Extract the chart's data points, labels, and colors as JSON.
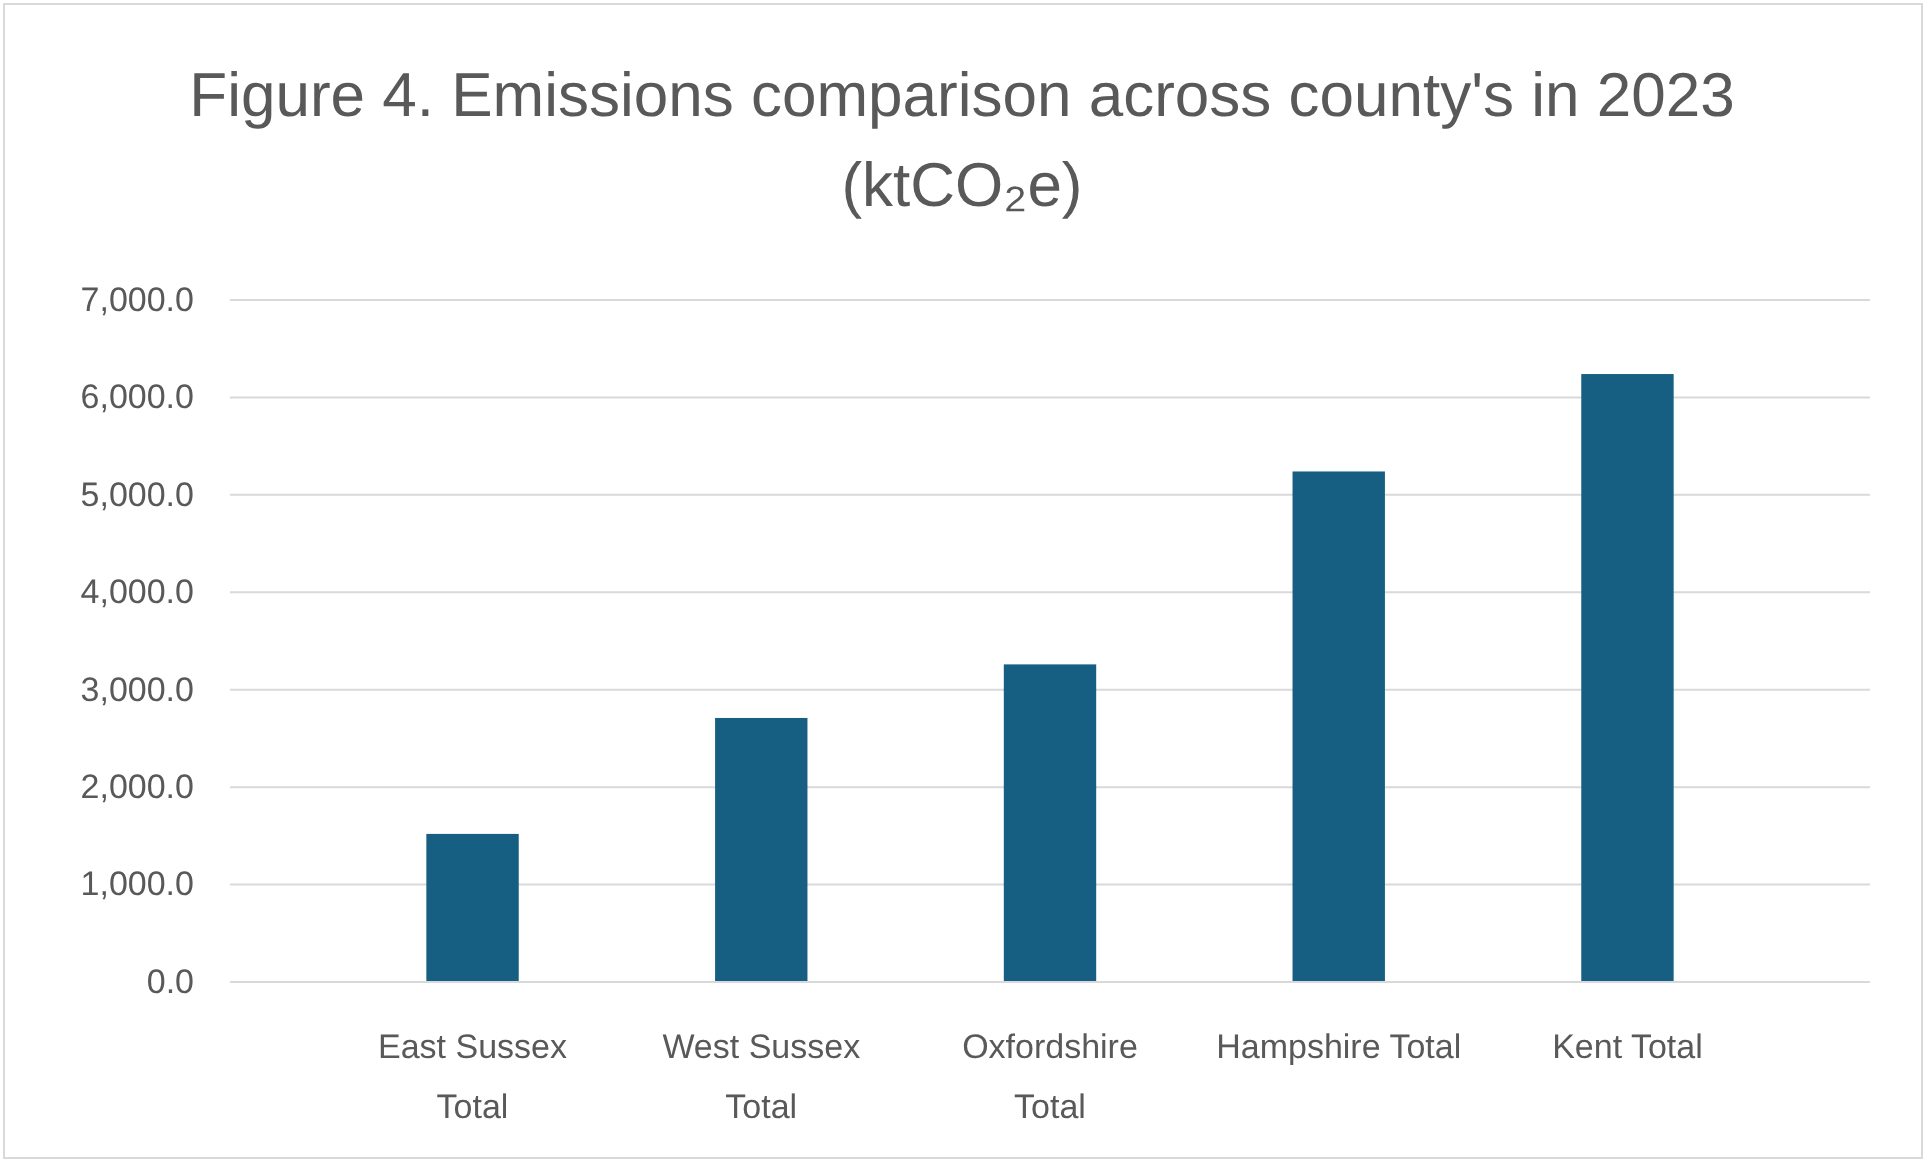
{
  "chart_data": {
    "type": "bar",
    "title": "Figure 4. Emissions comparison across county's in 2023 (ktCO₂e)",
    "categories": [
      "East Sussex Total",
      "West Sussex Total",
      "Oxfordshire Total",
      "Hampshire Total",
      "Kent Total"
    ],
    "values": [
      1520,
      2710,
      3260,
      5240,
      6240
    ],
    "color": "#175f82",
    "ylim": [
      0,
      7000
    ],
    "yticks": [
      {
        "value": 0,
        "label": "0.0"
      },
      {
        "value": 1000,
        "label": "1,000.0"
      },
      {
        "value": 2000,
        "label": "2,000.0"
      },
      {
        "value": 3000,
        "label": "3,000.0"
      },
      {
        "value": 4000,
        "label": "4,000.0"
      },
      {
        "value": 5000,
        "label": "5,000.0"
      },
      {
        "value": 6000,
        "label": "6,000.0"
      },
      {
        "value": 7000,
        "label": "7,000.0"
      }
    ],
    "grid": "y"
  }
}
